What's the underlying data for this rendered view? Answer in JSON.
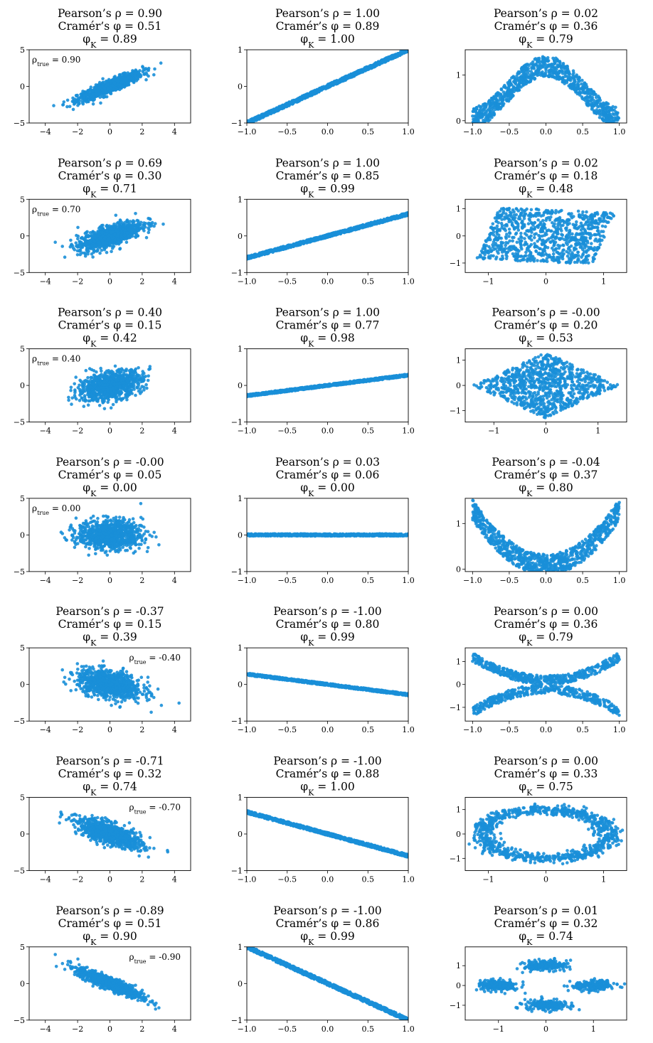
{
  "chart_data": [
    {
      "type": "scatter",
      "row": 0,
      "col": 0,
      "shape": "gauss",
      "rho_true": 0.9,
      "pearson": "0.90",
      "cramer": "0.51",
      "phik": "0.89",
      "annotation": "0.90",
      "ann_pos": "top-left",
      "xlim": [
        -5,
        5
      ],
      "ylim": [
        -5,
        5
      ],
      "xticks": [
        "−4",
        "−2",
        "0",
        "2",
        "4"
      ],
      "yticks": [
        "−5",
        "0",
        "5"
      ]
    },
    {
      "type": "scatter",
      "row": 0,
      "col": 1,
      "shape": "line",
      "slope": 1.0,
      "width": 0.05,
      "pearson": "1.00",
      "cramer": "0.89",
      "phik": "1.00",
      "xlim": [
        -1,
        1
      ],
      "ylim": [
        -1,
        1
      ],
      "xticks": [
        "−1.0",
        "−0.5",
        "0.0",
        "0.5",
        "1.0"
      ],
      "yticks": [
        "−1",
        "0",
        "1"
      ]
    },
    {
      "type": "scatter",
      "row": 0,
      "col": 2,
      "shape": "wave",
      "pearson": "0.02",
      "cramer": "0.36",
      "phik": "0.79",
      "xlim": [
        -1.1,
        1.1
      ],
      "ylim": [
        -0.05,
        1.55
      ],
      "xticks": [
        "−1.0",
        "−0.5",
        "0.0",
        "0.5",
        "1.0"
      ],
      "yticks": [
        "0",
        "1"
      ]
    },
    {
      "type": "scatter",
      "row": 1,
      "col": 0,
      "shape": "gauss",
      "rho_true": 0.7,
      "pearson": "0.69",
      "cramer": "0.30",
      "phik": "0.71",
      "annotation": "0.70",
      "ann_pos": "top-left",
      "xlim": [
        -5,
        5
      ],
      "ylim": [
        -5,
        5
      ],
      "xticks": [
        "−4",
        "−2",
        "0",
        "2",
        "4"
      ],
      "yticks": [
        "−5",
        "0",
        "5"
      ]
    },
    {
      "type": "scatter",
      "row": 1,
      "col": 1,
      "shape": "line",
      "slope": 0.6,
      "width": 0.04,
      "pearson": "1.00",
      "cramer": "0.85",
      "phik": "0.99",
      "xlim": [
        -1,
        1
      ],
      "ylim": [
        -1,
        1
      ],
      "xticks": [
        "−1.0",
        "−0.5",
        "0.0",
        "0.5",
        "1.0"
      ],
      "yticks": [
        "−1",
        "0",
        "1"
      ]
    },
    {
      "type": "scatter",
      "row": 1,
      "col": 2,
      "shape": "parallelogram",
      "pearson": "0.02",
      "cramer": "0.18",
      "phik": "0.48",
      "xlim": [
        -1.4,
        1.4
      ],
      "ylim": [
        -1.35,
        1.35
      ],
      "xticks": [
        "−1",
        "0",
        "1"
      ],
      "yticks": [
        "−1",
        "0",
        "1"
      ]
    },
    {
      "type": "scatter",
      "row": 2,
      "col": 0,
      "shape": "gauss",
      "rho_true": 0.4,
      "pearson": "0.40",
      "cramer": "0.15",
      "phik": "0.42",
      "annotation": "0.40",
      "ann_pos": "top-left",
      "xlim": [
        -5,
        5
      ],
      "ylim": [
        -5,
        5
      ],
      "xticks": [
        "−4",
        "−2",
        "0",
        "2",
        "4"
      ],
      "yticks": [
        "−5",
        "0",
        "5"
      ]
    },
    {
      "type": "scatter",
      "row": 2,
      "col": 1,
      "shape": "line",
      "slope": 0.28,
      "width": 0.03,
      "pearson": "1.00",
      "cramer": "0.77",
      "phik": "0.98",
      "xlim": [
        -1,
        1
      ],
      "ylim": [
        -1,
        1
      ],
      "xticks": [
        "−1.0",
        "−0.5",
        "0.0",
        "0.5",
        "1.0"
      ],
      "yticks": [
        "−1",
        "0",
        "1"
      ]
    },
    {
      "type": "scatter",
      "row": 2,
      "col": 2,
      "shape": "diamond",
      "pearson": "-0.00",
      "cramer": "0.20",
      "phik": "0.53",
      "xlim": [
        -1.55,
        1.55
      ],
      "ylim": [
        -1.45,
        1.45
      ],
      "xticks": [
        "−1",
        "0",
        "1"
      ],
      "yticks": [
        "−1",
        "0",
        "1"
      ]
    },
    {
      "type": "scatter",
      "row": 3,
      "col": 0,
      "shape": "gauss",
      "rho_true": 0.0,
      "pearson": "-0.00",
      "cramer": "0.05",
      "phik": "0.00",
      "annotation": "0.00",
      "ann_pos": "top-left",
      "xlim": [
        -5,
        5
      ],
      "ylim": [
        -5,
        5
      ],
      "xticks": [
        "−4",
        "−2",
        "0",
        "2",
        "4"
      ],
      "yticks": [
        "−5",
        "0",
        "5"
      ]
    },
    {
      "type": "scatter",
      "row": 3,
      "col": 1,
      "shape": "line",
      "slope": 0.0,
      "width": 0.03,
      "pearson": "0.03",
      "cramer": "0.06",
      "phik": "0.00",
      "xlim": [
        -1,
        1
      ],
      "ylim": [
        -1,
        1
      ],
      "xticks": [
        "−1.0",
        "−0.5",
        "0.0",
        "0.5",
        "1.0"
      ],
      "yticks": [
        "−1",
        "0",
        "1"
      ]
    },
    {
      "type": "scatter",
      "row": 3,
      "col": 2,
      "shape": "parabola",
      "pearson": "-0.04",
      "cramer": "0.37",
      "phik": "0.80",
      "xlim": [
        -1.1,
        1.1
      ],
      "ylim": [
        -0.05,
        1.55
      ],
      "xticks": [
        "−1.0",
        "−0.5",
        "0.0",
        "0.5",
        "1.0"
      ],
      "yticks": [
        "0",
        "1"
      ]
    },
    {
      "type": "scatter",
      "row": 4,
      "col": 0,
      "shape": "gauss",
      "rho_true": -0.4,
      "pearson": "-0.37",
      "cramer": "0.15",
      "phik": "0.39",
      "annotation": "-0.40",
      "ann_pos": "top-right",
      "xlim": [
        -5,
        5
      ],
      "ylim": [
        -5,
        5
      ],
      "xticks": [
        "−4",
        "−2",
        "0",
        "2",
        "4"
      ],
      "yticks": [
        "−5",
        "0",
        "5"
      ]
    },
    {
      "type": "scatter",
      "row": 4,
      "col": 1,
      "shape": "line",
      "slope": -0.28,
      "width": 0.03,
      "pearson": "-1.00",
      "cramer": "0.80",
      "phik": "0.99",
      "xlim": [
        -1,
        1
      ],
      "ylim": [
        -1,
        1
      ],
      "xticks": [
        "−1.0",
        "−0.5",
        "0.0",
        "0.5",
        "1.0"
      ],
      "yticks": [
        "−1",
        "0",
        "1"
      ]
    },
    {
      "type": "scatter",
      "row": 4,
      "col": 2,
      "shape": "x",
      "pearson": "0.00",
      "cramer": "0.36",
      "phik": "0.79",
      "xlim": [
        -1.1,
        1.1
      ],
      "ylim": [
        -1.6,
        1.6
      ],
      "xticks": [
        "−1.0",
        "−0.5",
        "0.0",
        "0.5",
        "1.0"
      ],
      "yticks": [
        "−1",
        "0",
        "1"
      ]
    },
    {
      "type": "scatter",
      "row": 5,
      "col": 0,
      "shape": "gauss",
      "rho_true": -0.7,
      "pearson": "-0.71",
      "cramer": "0.32",
      "phik": "0.74",
      "annotation": "-0.70",
      "ann_pos": "top-right",
      "xlim": [
        -5,
        5
      ],
      "ylim": [
        -5,
        5
      ],
      "xticks": [
        "−4",
        "−2",
        "0",
        "2",
        "4"
      ],
      "yticks": [
        "−5",
        "0",
        "5"
      ]
    },
    {
      "type": "scatter",
      "row": 5,
      "col": 1,
      "shape": "line",
      "slope": -0.6,
      "width": 0.04,
      "pearson": "-1.00",
      "cramer": "0.88",
      "phik": "1.00",
      "xlim": [
        -1,
        1
      ],
      "ylim": [
        -1,
        1
      ],
      "xticks": [
        "−1.0",
        "−0.5",
        "0.0",
        "0.5",
        "1.0"
      ],
      "yticks": [
        "−1",
        "0",
        "1"
      ]
    },
    {
      "type": "scatter",
      "row": 5,
      "col": 2,
      "shape": "ring",
      "pearson": "0.00",
      "cramer": "0.33",
      "phik": "0.75",
      "xlim": [
        -1.4,
        1.4
      ],
      "ylim": [
        -1.5,
        1.5
      ],
      "xticks": [
        "−1",
        "0",
        "1"
      ],
      "yticks": [
        "−1",
        "0",
        "1"
      ]
    },
    {
      "type": "scatter",
      "row": 6,
      "col": 0,
      "shape": "gauss",
      "rho_true": -0.9,
      "pearson": "-0.89",
      "cramer": "0.51",
      "phik": "0.90",
      "annotation": "-0.90",
      "ann_pos": "top-right",
      "xlim": [
        -5,
        5
      ],
      "ylim": [
        -5,
        5
      ],
      "xticks": [
        "−4",
        "−2",
        "0",
        "2",
        "4"
      ],
      "yticks": [
        "−5",
        "0",
        "5"
      ]
    },
    {
      "type": "scatter",
      "row": 6,
      "col": 1,
      "shape": "line",
      "slope": -1.0,
      "width": 0.05,
      "pearson": "-1.00",
      "cramer": "0.86",
      "phik": "0.99",
      "xlim": [
        -1,
        1
      ],
      "ylim": [
        -1,
        1
      ],
      "xticks": [
        "−1.0",
        "−0.5",
        "0.0",
        "0.5",
        "1.0"
      ],
      "yticks": [
        "−1",
        "0",
        "1"
      ]
    },
    {
      "type": "scatter",
      "row": 6,
      "col": 2,
      "shape": "clusters",
      "pearson": "0.01",
      "cramer": "0.32",
      "phik": "0.74",
      "xlim": [
        -1.7,
        1.7
      ],
      "ylim": [
        -1.75,
        1.95
      ],
      "xticks": [
        "−1",
        "0",
        "1"
      ],
      "yticks": [
        "−1",
        "0",
        "1"
      ]
    }
  ],
  "labels": {
    "pearson_prefix": "Pearson’s ρ = ",
    "cramer_prefix": "Cramér’s φ = ",
    "phik_prefix": "φ",
    "phik_sub": "K",
    "phik_eq": " = ",
    "ann_rho": "ρ",
    "ann_sub": "true",
    "ann_eq": " = "
  },
  "colors": {
    "points": "#1a8fd8"
  }
}
